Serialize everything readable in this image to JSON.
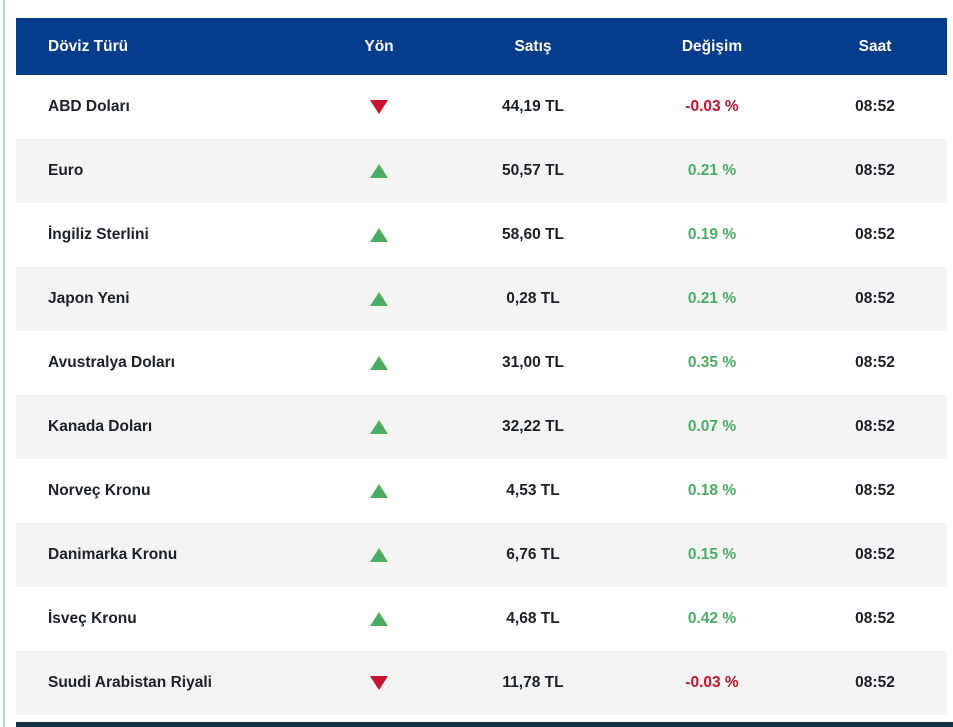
{
  "table": {
    "columns": {
      "currency": "Döviz Türü",
      "direction": "Yön",
      "price": "Satış",
      "change": "Değişim",
      "time": "Saat"
    },
    "rows": [
      {
        "currency": "ABD Doları",
        "direction": "down",
        "price": "44,19 TL",
        "change": "-0.03 %",
        "time": "08:52"
      },
      {
        "currency": "Euro",
        "direction": "up",
        "price": "50,57 TL",
        "change": "0.21 %",
        "time": "08:52"
      },
      {
        "currency": "İngiliz Sterlini",
        "direction": "up",
        "price": "58,60 TL",
        "change": "0.19 %",
        "time": "08:52"
      },
      {
        "currency": "Japon Yeni",
        "direction": "up",
        "price": "0,28 TL",
        "change": "0.21 %",
        "time": "08:52"
      },
      {
        "currency": "Avustralya Doları",
        "direction": "up",
        "price": "31,00 TL",
        "change": "0.35 %",
        "time": "08:52"
      },
      {
        "currency": "Kanada Doları",
        "direction": "up",
        "price": "32,22 TL",
        "change": "0.07 %",
        "time": "08:52"
      },
      {
        "currency": "Norveç Kronu",
        "direction": "up",
        "price": "4,53 TL",
        "change": "0.18 %",
        "time": "08:52"
      },
      {
        "currency": "Danimarka Kronu",
        "direction": "up",
        "price": "6,76 TL",
        "change": "0.15 %",
        "time": "08:52"
      },
      {
        "currency": "İsveç Kronu",
        "direction": "up",
        "price": "4,68 TL",
        "change": "0.42 %",
        "time": "08:52"
      },
      {
        "currency": "Suudi Arabistan Riyali",
        "direction": "down",
        "price": "11,78 TL",
        "change": "-0.03 %",
        "time": "08:52"
      }
    ]
  },
  "colors": {
    "header_bg": "#063c8c",
    "row_alt_bg": "#f4f4f4",
    "text_dark": "#1a212b",
    "up_green": "#4aae62",
    "down_red": "#c8112a",
    "bottom_bar": "#132e40",
    "left_accent": "#aadcec"
  }
}
